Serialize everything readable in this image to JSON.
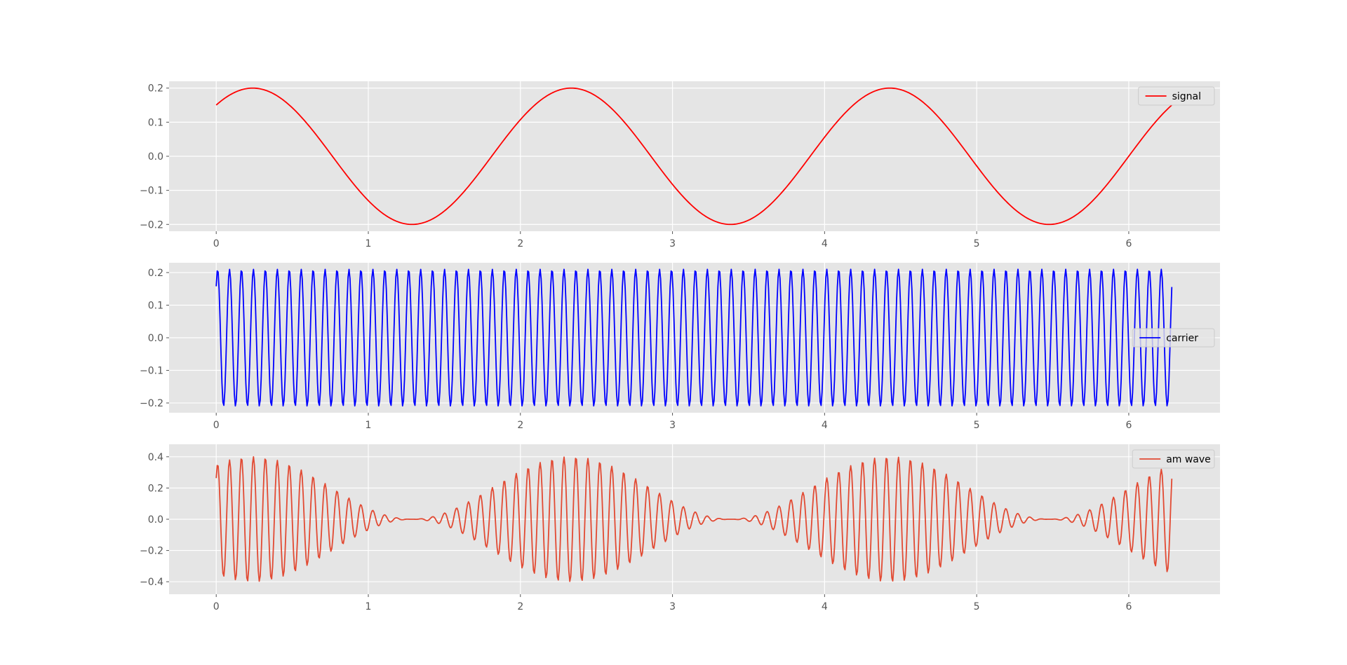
{
  "chart_data": [
    {
      "type": "line",
      "title": "",
      "xlabel": "",
      "ylabel": "",
      "xlim": [
        -0.31,
        6.6
      ],
      "ylim": [
        -0.22,
        0.22
      ],
      "xticks": [
        0,
        1,
        2,
        3,
        4,
        5,
        6
      ],
      "yticks": [
        0.2,
        0.1,
        0.0,
        -0.1,
        -0.2
      ],
      "ytick_labels": [
        "0.2",
        "0.1",
        "0.0",
        "−0.1",
        "−0.2"
      ],
      "grid": true,
      "legend_position": "upper right",
      "series": [
        {
          "name": "signal",
          "color": "#ff0000",
          "formula": "0.2*sin(3*x + 0.85)",
          "x_range": [
            0,
            6.283
          ],
          "samples": 600
        }
      ]
    },
    {
      "type": "line",
      "title": "",
      "xlabel": "",
      "ylabel": "",
      "xlim": [
        -0.31,
        6.6
      ],
      "ylim": [
        -0.23,
        0.23
      ],
      "xticks": [
        0,
        1,
        2,
        3,
        4,
        5,
        6
      ],
      "yticks": [
        0.2,
        0.1,
        0.0,
        -0.1,
        -0.2
      ],
      "ytick_labels": [
        "0.2",
        "0.1",
        "0.0",
        "−0.1",
        "−0.2"
      ],
      "grid": true,
      "legend_position": "center right",
      "series": [
        {
          "name": "carrier",
          "color": "#0000ff",
          "formula": "0.21*sin(80*x + 0.85)",
          "x_range": [
            0,
            6.283
          ],
          "samples": 1000
        }
      ]
    },
    {
      "type": "line",
      "title": "",
      "xlabel": "",
      "ylabel": "",
      "xlim": [
        -0.31,
        6.6
      ],
      "ylim": [
        -0.48,
        0.48
      ],
      "xticks": [
        0,
        1,
        2,
        3,
        4,
        5,
        6
      ],
      "yticks": [
        0.4,
        0.2,
        0.0,
        -0.2,
        -0.4
      ],
      "ytick_labels": [
        "0.4",
        "0.2",
        "0.0",
        "−0.2",
        "−0.4"
      ],
      "grid": true,
      "legend_position": "upper right",
      "series": [
        {
          "name": "am wave",
          "color": "#e24a33",
          "formula": "(0.2*sin(3*x + 0.85) + 0.2) * sin(80*x + 0.85)",
          "x_range": [
            0,
            6.283
          ],
          "samples": 1000
        }
      ]
    }
  ]
}
